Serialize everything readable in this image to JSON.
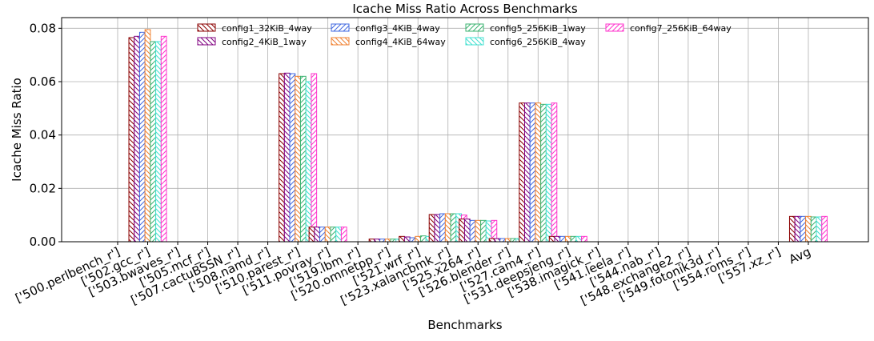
{
  "chart_data": {
    "type": "bar",
    "title": "Icache Miss Ratio Across Benchmarks",
    "xlabel": "Benchmarks",
    "ylabel": "Icache Miss Ratio",
    "categories": [
      "['500.perlbench_r']",
      "['502.gcc_r']",
      "['503.bwaves_r']",
      "['505.mcf_r']",
      "['507.cactuBSSN_r']",
      "['508.namd_r']",
      "['510.parest_r']",
      "['511.povray_r']",
      "['519.lbm_r']",
      "['520.omnetpp_r']",
      "['521.wrf_r']",
      "['523.xalancbmk_r']",
      "['525.x264_r']",
      "['526.blender_r']",
      "['527.cam4_r']",
      "['531.deepsjeng_r']",
      "['538.imagick_r']",
      "['541.leela_r']",
      "['544.nab_r']",
      "['548.exchange2_r']",
      "['549.fotonik3d_r']",
      "['554.roms_r']",
      "['557.xz_r']",
      "Avg"
    ],
    "series": [
      {
        "name": "config1_32KiB_4way",
        "color": "#8b0000",
        "hatch": "\\",
        "values": [
          0,
          0.0765,
          0,
          0,
          0,
          0,
          0.063,
          0.0055,
          0,
          0.001,
          0.002,
          0.0102,
          0.0085,
          0.0012,
          0.052,
          0.002,
          0,
          0,
          0,
          0,
          0,
          0,
          0,
          0.0095
        ]
      },
      {
        "name": "config2_4KiB_1way",
        "color": "#800080",
        "hatch": "\\",
        "values": [
          0,
          0.077,
          0,
          0,
          0,
          0,
          0.0632,
          0.0055,
          0,
          0.001,
          0.0018,
          0.0102,
          0.0085,
          0.0012,
          0.052,
          0.002,
          0,
          0,
          0,
          0,
          0,
          0,
          0,
          0.0095
        ]
      },
      {
        "name": "config3_4KiB_4way",
        "color": "#4169e1",
        "hatch": "/",
        "values": [
          0,
          0.0785,
          0,
          0,
          0,
          0,
          0.063,
          0.0055,
          0,
          0.001,
          0.0015,
          0.0105,
          0.008,
          0.0012,
          0.052,
          0.002,
          0,
          0,
          0,
          0,
          0,
          0,
          0,
          0.0095
        ]
      },
      {
        "name": "config4_4KiB_64way",
        "color": "#f08030",
        "hatch": "\\",
        "values": [
          0,
          0.0795,
          0,
          0,
          0,
          0,
          0.062,
          0.0055,
          0,
          0.001,
          0.002,
          0.0105,
          0.008,
          0.0012,
          0.052,
          0.002,
          0,
          0,
          0,
          0,
          0,
          0,
          0,
          0.0095
        ]
      },
      {
        "name": "config5_256KiB_1way",
        "color": "#3cb371",
        "hatch": "/",
        "values": [
          0,
          0.075,
          0,
          0,
          0,
          0,
          0.062,
          0.0055,
          0,
          0.001,
          0.0022,
          0.0105,
          0.008,
          0.0012,
          0.0515,
          0.002,
          0,
          0,
          0,
          0,
          0,
          0,
          0,
          0.0093
        ]
      },
      {
        "name": "config6_256KiB_4way",
        "color": "#40e0d0",
        "hatch": "\\",
        "values": [
          0,
          0.075,
          0,
          0,
          0,
          0,
          0.06,
          0.0055,
          0,
          0.001,
          0.002,
          0.0105,
          0.0078,
          0.0012,
          0.0515,
          0.002,
          0,
          0,
          0,
          0,
          0,
          0,
          0,
          0.0093
        ]
      },
      {
        "name": "config7_256KiB_64way",
        "color": "#ff33cc",
        "hatch": "/",
        "values": [
          0,
          0.077,
          0,
          0,
          0,
          0,
          0.063,
          0.0055,
          0,
          0.001,
          0.002,
          0.01,
          0.008,
          0.0012,
          0.052,
          0.002,
          0,
          0,
          0,
          0,
          0,
          0,
          0,
          0.0095
        ]
      }
    ],
    "ylim": [
      0,
      0.084
    ],
    "yticks": [
      {
        "value": 0,
        "label": "0.00"
      },
      {
        "value": 0.02,
        "label": "0.02"
      },
      {
        "value": 0.04,
        "label": "0.04"
      },
      {
        "value": 0.06,
        "label": "0.06"
      },
      {
        "value": 0.08,
        "label": "0.08"
      }
    ],
    "grid": true,
    "legend": "upper center"
  }
}
